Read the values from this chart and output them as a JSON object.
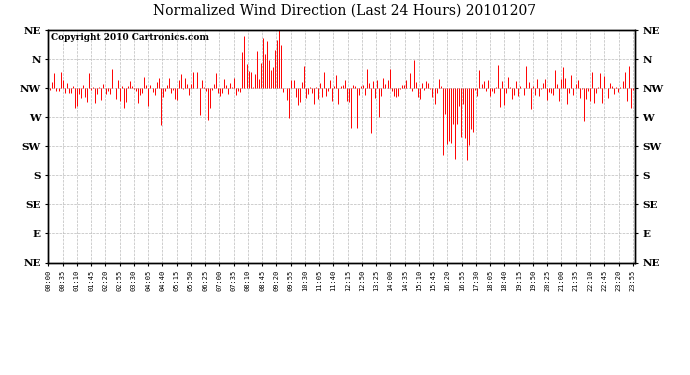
{
  "title": "Normalized Wind Direction (Last 24 Hours) 20101207",
  "copyright_text": "Copyright 2010 Cartronics.com",
  "line_color": "#ff0000",
  "background_color": "#ffffff",
  "grid_color": "#bbbbbb",
  "y_labels": [
    "NE",
    "N",
    "NW",
    "W",
    "SW",
    "S",
    "SE",
    "E",
    "NE"
  ],
  "y_values": [
    8,
    7,
    6,
    5,
    4,
    3,
    2,
    1,
    0
  ],
  "num_points": 288,
  "seed": 42,
  "mean_direction": 6.0,
  "noise_std": 0.35,
  "x_tick_labels": [
    "00:00",
    "00:35",
    "01:10",
    "01:45",
    "02:20",
    "02:55",
    "03:30",
    "04:05",
    "04:40",
    "05:15",
    "05:50",
    "06:25",
    "07:00",
    "07:35",
    "08:10",
    "08:45",
    "09:20",
    "09:55",
    "10:30",
    "11:05",
    "11:40",
    "12:15",
    "12:50",
    "13:25",
    "14:00",
    "14:35",
    "15:10",
    "15:45",
    "16:20",
    "16:55",
    "17:30",
    "18:05",
    "18:40",
    "19:15",
    "19:50",
    "20:25",
    "21:00",
    "21:35",
    "22:10",
    "22:45",
    "23:20",
    "23:55"
  ]
}
